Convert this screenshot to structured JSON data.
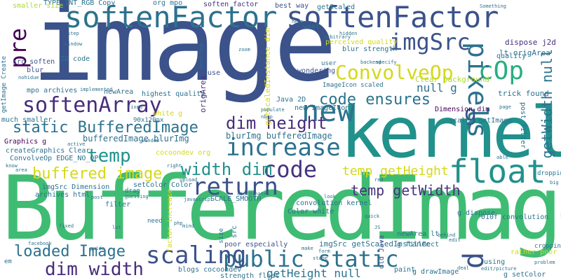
{
  "palette": {
    "navy": "#3b528b",
    "indigo": "#472d7b",
    "purple": "#440154",
    "teal": "#21918c",
    "blue": "#2c728e",
    "green": "#28ae80",
    "lime": "#5ec962",
    "yellow": "#d4d81a",
    "light_green": "#addc30"
  },
  "words": [
    {
      "text": "image",
      "color": "#3b528b"
    },
    {
      "text": "BufferedImage",
      "color": "#3fbc73"
    },
    {
      "text": "kernel",
      "color": "#21918c"
    },
    {
      "text": "softenFactor",
      "color": "#2c728e"
    },
    {
      "text": "softenFactor",
      "color": "#3b528b"
    },
    {
      "text": "softenArray",
      "color": "#472d7b"
    },
    {
      "text": "new",
      "color": "#2c728e"
    },
    {
      "text": "code",
      "color": "#46337f"
    },
    {
      "text": "float",
      "color": "#21918c"
    },
    {
      "text": "imgSrc",
      "color": "#3b528b"
    },
    {
      "text": "ConvolveOp",
      "color": "#d4d81a"
    },
    {
      "text": "cOp",
      "color": "#28ae80"
    },
    {
      "text": "pixels",
      "color": "#2c728e"
    },
    {
      "text": "increase",
      "color": "#2c728e"
    },
    {
      "text": "return",
      "color": "#3b528b"
    },
    {
      "text": "public static",
      "color": "#2c728e"
    },
    {
      "text": "scaling",
      "color": "#3b528b"
    },
    {
      "text": "loaded Image",
      "color": "#2c728e"
    },
    {
      "text": "dim width",
      "color": "#472d7b"
    },
    {
      "text": "static BufferedImage",
      "color": "#2c728e"
    },
    {
      "text": "code ensures",
      "color": "#2c728e"
    },
    {
      "text": "dim height",
      "color": "#472d7b"
    },
    {
      "text": "width dim",
      "color": "#21918c"
    },
    {
      "text": "temp",
      "color": "#21918c"
    },
    {
      "text": "buffered image",
      "color": "#d4d81a"
    },
    {
      "text": "pre",
      "color": "#440154"
    },
    {
      "text": "p",
      "color": "#3b528b"
    },
    {
      "text": "getWidth null",
      "color": "#2c728e"
    },
    {
      "text": "temp getWidth",
      "color": "#46337f"
    },
    {
      "text": "temp getHeight",
      "color": "#d4d81a"
    },
    {
      "text": "getHeight null",
      "color": "#2c728e"
    },
    {
      "text": "g",
      "color": "#3b528b"
    },
    {
      "text": "null g",
      "color": "#2c728e"
    },
    {
      "text": "bufferedImage blurImg",
      "color": "#2c728e"
    },
    {
      "text": "blurImg bufferedImage",
      "color": "#2c728e"
    },
    {
      "text": "imgSrc getScaledInstance",
      "color": "#2c728e"
    },
    {
      "text": "Dimension dim",
      "color": "#440154"
    },
    {
      "text": "scaled getImage",
      "color": "#2c728e"
    },
    {
      "text": "trick found",
      "color": "#2c728e"
    },
    {
      "text": "lt origArea",
      "color": "#2c728e"
    },
    {
      "text": "Clear background",
      "color": "#addc30"
    },
    {
      "text": "blur strength",
      "color": "#2c728e"
    },
    {
      "text": "perceived quality",
      "color": "#d4d81a"
    },
    {
      "text": "dispose j2d",
      "color": "#472d7b"
    },
    {
      "text": "quality",
      "color": "#2c728e"
    },
    {
      "text": "TYPE_INT_RGB Copy",
      "color": "#2c728e"
    },
    {
      "text": "org mpo",
      "color": "#2c728e"
    },
    {
      "text": "soften factor",
      "color": "#46337f"
    },
    {
      "text": "best way",
      "color": "#3b528b"
    },
    {
      "text": "getScaled",
      "color": "#2c728e"
    },
    {
      "text": "smaller size",
      "color": "#addc30"
    },
    {
      "text": "want",
      "color": "#2c728e"
    },
    {
      "text": "src soften",
      "color": "#3b528b"
    },
    {
      "text": "blur",
      "color": "#3b528b"
    },
    {
      "text": "2D code",
      "color": "#2c728e"
    },
    {
      "text": "mpo archives",
      "color": "#2c728e"
    },
    {
      "text": "newArea",
      "color": "#2c728e"
    },
    {
      "text": "highest quality",
      "color": "#2c728e"
    },
    {
      "text": "reuse",
      "color": "#3b528b"
    },
    {
      "text": "wondering",
      "color": "#3b528b"
    },
    {
      "text": "user",
      "color": "#2c728e"
    },
    {
      "text": "ImageIcon scaled",
      "color": "#2c728e"
    },
    {
      "text": "getScaledInstance dim",
      "color": "#d4d81a"
    },
    {
      "text": "origArea",
      "color": "#472d7b"
    },
    {
      "text": "Java 2D",
      "color": "#2c728e"
    },
    {
      "text": "new ImageIcon",
      "color": "#2c728e"
    },
    {
      "text": "much smaller",
      "color": "#2c728e"
    },
    {
      "text": "white g",
      "color": "#d4d81a"
    },
    {
      "text": "Graphics g",
      "color": "#440154"
    },
    {
      "text": "createGraphics Clear",
      "color": "#2c728e"
    },
    {
      "text": "ConvolveOp EDGE_NO_OP",
      "color": "#2c728e"
    },
    {
      "text": "cocoondev org",
      "color": "#d4d81a"
    },
    {
      "text": "setColor Color",
      "color": "#2c728e"
    },
    {
      "text": "imgSrc Dimension",
      "color": "#2c728e"
    },
    {
      "text": "archives html",
      "color": "#2c728e"
    },
    {
      "text": "filter",
      "color": "#2c728e"
    },
    {
      "text": "factor increase",
      "color": "#d4d81a"
    },
    {
      "text": "SCALE_SMOOTH",
      "color": "#2c728e"
    },
    {
      "text": "convolution kernel",
      "color": "#2c728e"
    },
    {
      "text": "Color white",
      "color": "#2c728e"
    },
    {
      "text": "g dispose",
      "color": "#2c728e"
    },
    {
      "text": "010f convolution",
      "color": "#2c728e"
    },
    {
      "text": "newArea lt",
      "color": "#2c728e"
    },
    {
      "text": "g fillRect",
      "color": "#2c728e"
    },
    {
      "text": "rather poor",
      "color": "#d4d81a"
    },
    {
      "text": "cropping",
      "color": "#2c728e"
    },
    {
      "text": "dropping",
      "color": "#2c728e"
    },
    {
      "text": "poor especially",
      "color": "#3b528b"
    },
    {
      "text": "old Java",
      "color": "#3b528b"
    },
    {
      "text": "blogs cocoondev",
      "color": "#2c728e"
    },
    {
      "text": "strength float",
      "color": "#2c728e"
    },
    {
      "text": "paint",
      "color": "#2c728e"
    },
    {
      "text": "g drawImage",
      "color": "#2c728e"
    },
    {
      "text": "using",
      "color": "#2c728e"
    },
    {
      "text": "g setColor",
      "color": "#2c728e"
    },
    {
      "text": "need",
      "color": "#2c728e"
    },
    {
      "text": "src",
      "color": "#2c728e"
    },
    {
      "text": "em",
      "color": "#2c728e"
    },
    {
      "text": "post filter",
      "color": "#2c728e"
    },
    {
      "text": "90x120px",
      "color": "#2c728e"
    },
    {
      "text": "getImage Create",
      "color": "#2c728e"
    },
    {
      "text": "size",
      "color": "#2c728e"
    },
    {
      "text": "drag",
      "color": "#2c728e"
    },
    {
      "text": "facebook",
      "color": "#2c728e"
    },
    {
      "text": "fixed",
      "color": "#2c728e"
    },
    {
      "text": "coordinates",
      "color": "#2c728e"
    },
    {
      "text": "page",
      "color": "#2c728e"
    },
    {
      "text": "big",
      "color": "#2c728e"
    },
    {
      "text": "step",
      "color": "#2c728e"
    },
    {
      "text": "help",
      "color": "#2c728e"
    },
    {
      "text": "specify",
      "color": "#2c728e"
    },
    {
      "text": "arbitrary",
      "color": "#2c728e"
    },
    {
      "text": "implemented",
      "color": "#2c728e"
    },
    {
      "text": "populate",
      "color": "#2c728e"
    },
    {
      "text": "Something",
      "color": "#2c728e"
    },
    {
      "text": "upload",
      "color": "#2c728e"
    },
    {
      "text": "red",
      "color": "#2c728e"
    },
    {
      "text": "lot",
      "color": "#2c728e"
    },
    {
      "text": "make",
      "color": "#2c728e"
    },
    {
      "text": "behind",
      "color": "#2c728e"
    },
    {
      "text": "edit",
      "color": "#2c728e"
    },
    {
      "text": "deal",
      "color": "#2c728e"
    },
    {
      "text": "edit/picture",
      "color": "#2c728e"
    },
    {
      "text": "guide",
      "color": "#2c728e"
    },
    {
      "text": "problem",
      "color": "#2c728e"
    },
    {
      "text": "JS",
      "color": "#2c728e"
    },
    {
      "text": "php",
      "color": "#2c728e"
    },
    {
      "text": "mind",
      "color": "#2c728e"
    },
    {
      "text": "form",
      "color": "#2c728e"
    },
    {
      "text": "guessing",
      "color": "#2c728e"
    },
    {
      "text": "active",
      "color": "#2c728e"
    },
    {
      "text": "nbsp",
      "color": "#2c728e"
    },
    {
      "text": "area",
      "color": "#2c728e"
    },
    {
      "text": "know",
      "color": "#2c728e"
    },
    {
      "text": "post",
      "color": "#2c728e"
    },
    {
      "text": "quick",
      "color": "#2c728e"
    },
    {
      "text": "window",
      "color": "#2c728e"
    },
    {
      "text": "right",
      "color": "#2c728e"
    },
    {
      "text": "javascript",
      "color": "#2c728e"
    },
    {
      "text": "look",
      "color": "#2c728e"
    },
    {
      "text": "hidden",
      "color": "#2c728e"
    },
    {
      "text": "backend",
      "color": "#2c728e"
    },
    {
      "text": "zoom",
      "color": "#2c728e"
    },
    {
      "text": "resulting",
      "color": "#2c728e"
    },
    {
      "text": "nohidue",
      "color": "#2c728e"
    },
    {
      "text": "window",
      "color": "#2c728e"
    },
    {
      "text": "fixed",
      "color": "#2c728e"
    },
    {
      "text": "stage",
      "color": "#2c728e"
    },
    {
      "text": "able",
      "color": "#2c728e"
    }
  ]
}
